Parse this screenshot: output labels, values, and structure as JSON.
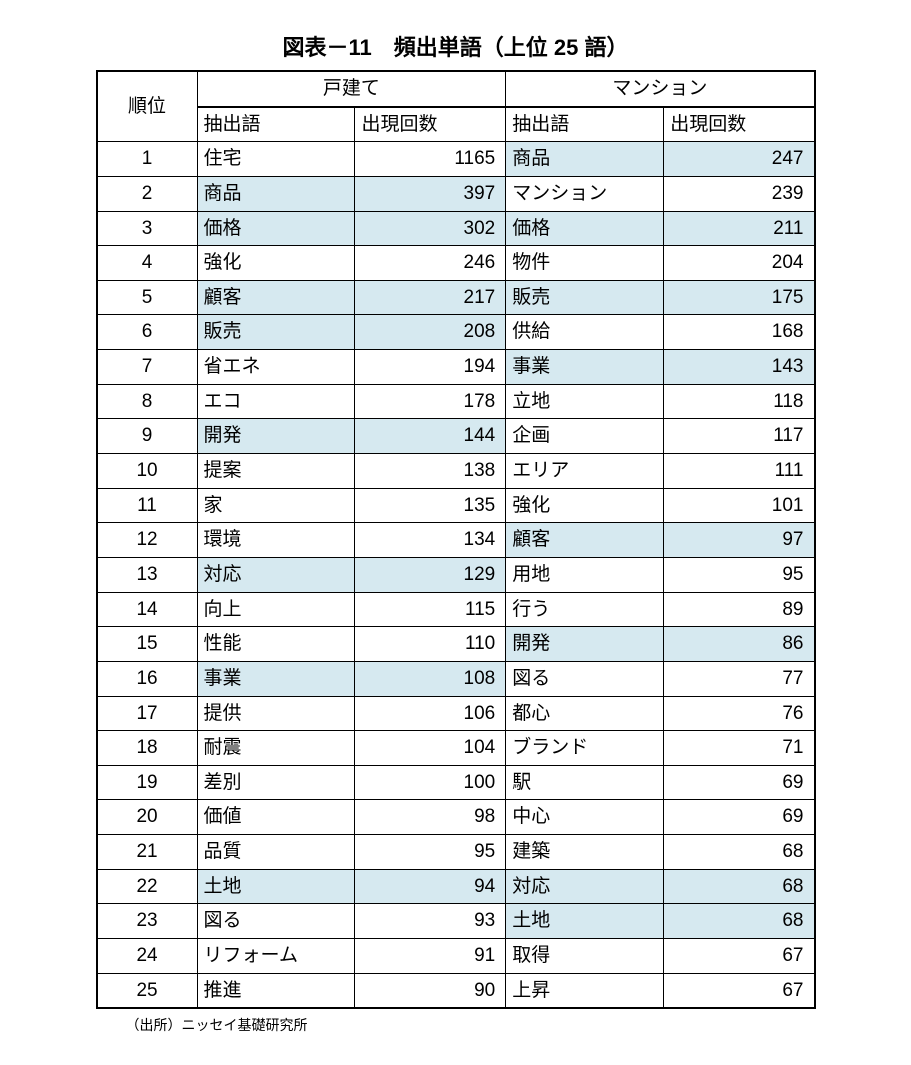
{
  "title": "図表－11　頻出単語（上位 25 語）",
  "source": "（出所）ニッセイ基礎研究所",
  "highlight_color": "#d6e9f0",
  "background_color": "#ffffff",
  "border_color": "#000000",
  "body_fontsize": 19,
  "title_fontsize": 22,
  "columns": {
    "rank": "順位",
    "group1": "戸建て",
    "group2": "マンション",
    "word": "抽出語",
    "count": "出現回数"
  },
  "rows": [
    {
      "rank": 1,
      "g1_word": "住宅",
      "g1_count": 1165,
      "g1_hl": false,
      "g2_word": "商品",
      "g2_count": 247,
      "g2_hl": true
    },
    {
      "rank": 2,
      "g1_word": "商品",
      "g1_count": 397,
      "g1_hl": true,
      "g2_word": "マンション",
      "g2_count": 239,
      "g2_hl": false
    },
    {
      "rank": 3,
      "g1_word": "価格",
      "g1_count": 302,
      "g1_hl": true,
      "g2_word": "価格",
      "g2_count": 211,
      "g2_hl": true
    },
    {
      "rank": 4,
      "g1_word": "強化",
      "g1_count": 246,
      "g1_hl": false,
      "g2_word": "物件",
      "g2_count": 204,
      "g2_hl": false
    },
    {
      "rank": 5,
      "g1_word": "顧客",
      "g1_count": 217,
      "g1_hl": true,
      "g2_word": "販売",
      "g2_count": 175,
      "g2_hl": true
    },
    {
      "rank": 6,
      "g1_word": "販売",
      "g1_count": 208,
      "g1_hl": true,
      "g2_word": "供給",
      "g2_count": 168,
      "g2_hl": false
    },
    {
      "rank": 7,
      "g1_word": "省エネ",
      "g1_count": 194,
      "g1_hl": false,
      "g2_word": "事業",
      "g2_count": 143,
      "g2_hl": true
    },
    {
      "rank": 8,
      "g1_word": "エコ",
      "g1_count": 178,
      "g1_hl": false,
      "g2_word": "立地",
      "g2_count": 118,
      "g2_hl": false
    },
    {
      "rank": 9,
      "g1_word": "開発",
      "g1_count": 144,
      "g1_hl": true,
      "g2_word": "企画",
      "g2_count": 117,
      "g2_hl": false
    },
    {
      "rank": 10,
      "g1_word": "提案",
      "g1_count": 138,
      "g1_hl": false,
      "g2_word": "エリア",
      "g2_count": 111,
      "g2_hl": false
    },
    {
      "rank": 11,
      "g1_word": "家",
      "g1_count": 135,
      "g1_hl": false,
      "g2_word": "強化",
      "g2_count": 101,
      "g2_hl": false
    },
    {
      "rank": 12,
      "g1_word": "環境",
      "g1_count": 134,
      "g1_hl": false,
      "g2_word": "顧客",
      "g2_count": 97,
      "g2_hl": true
    },
    {
      "rank": 13,
      "g1_word": "対応",
      "g1_count": 129,
      "g1_hl": true,
      "g2_word": "用地",
      "g2_count": 95,
      "g2_hl": false
    },
    {
      "rank": 14,
      "g1_word": "向上",
      "g1_count": 115,
      "g1_hl": false,
      "g2_word": "行う",
      "g2_count": 89,
      "g2_hl": false
    },
    {
      "rank": 15,
      "g1_word": "性能",
      "g1_count": 110,
      "g1_hl": false,
      "g2_word": "開発",
      "g2_count": 86,
      "g2_hl": true
    },
    {
      "rank": 16,
      "g1_word": "事業",
      "g1_count": 108,
      "g1_hl": true,
      "g2_word": "図る",
      "g2_count": 77,
      "g2_hl": false
    },
    {
      "rank": 17,
      "g1_word": "提供",
      "g1_count": 106,
      "g1_hl": false,
      "g2_word": "都心",
      "g2_count": 76,
      "g2_hl": false
    },
    {
      "rank": 18,
      "g1_word": "耐震",
      "g1_count": 104,
      "g1_hl": false,
      "g2_word": "ブランド",
      "g2_count": 71,
      "g2_hl": false
    },
    {
      "rank": 19,
      "g1_word": "差別",
      "g1_count": 100,
      "g1_hl": false,
      "g2_word": "駅",
      "g2_count": 69,
      "g2_hl": false
    },
    {
      "rank": 20,
      "g1_word": "価値",
      "g1_count": 98,
      "g1_hl": false,
      "g2_word": "中心",
      "g2_count": 69,
      "g2_hl": false
    },
    {
      "rank": 21,
      "g1_word": "品質",
      "g1_count": 95,
      "g1_hl": false,
      "g2_word": "建築",
      "g2_count": 68,
      "g2_hl": false
    },
    {
      "rank": 22,
      "g1_word": "土地",
      "g1_count": 94,
      "g1_hl": true,
      "g2_word": "対応",
      "g2_count": 68,
      "g2_hl": true
    },
    {
      "rank": 23,
      "g1_word": "図る",
      "g1_count": 93,
      "g1_hl": false,
      "g2_word": "土地",
      "g2_count": 68,
      "g2_hl": true
    },
    {
      "rank": 24,
      "g1_word": "リフォーム",
      "g1_count": 91,
      "g1_hl": false,
      "g2_word": "取得",
      "g2_count": 67,
      "g2_hl": false
    },
    {
      "rank": 25,
      "g1_word": "推進",
      "g1_count": 90,
      "g1_hl": false,
      "g2_word": "上昇",
      "g2_count": 67,
      "g2_hl": false
    }
  ]
}
